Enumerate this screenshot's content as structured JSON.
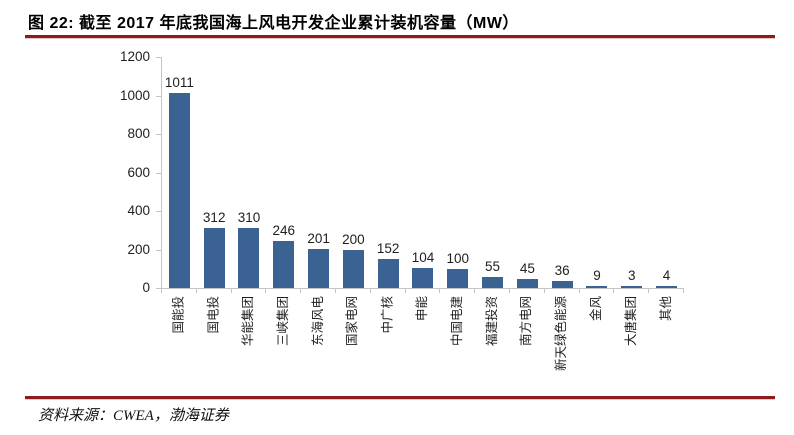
{
  "figure": {
    "title": "图 22: 截至 2017 年底我国海上风电开发企业累计装机容量（MW）",
    "source": "资料来源：CWEA，渤海证券"
  },
  "colors": {
    "bar": "#3A6394",
    "accent_rule": "#8B1D1D",
    "axis": "#C4C4C4",
    "text": "#1F1F1F"
  },
  "chart_data": {
    "type": "bar",
    "title": "截至2017年底我国海上风电开发企业累计装机容量（MW）",
    "categories": [
      "国能投",
      "国电投",
      "华能集团",
      "三峡集团",
      "东海风电",
      "国家电网",
      "中广核",
      "申能",
      "中国电建",
      "福建投资",
      "南方电网",
      "新天绿色能源",
      "金风",
      "大唐集团",
      "其他"
    ],
    "values": [
      1011,
      312,
      310,
      246,
      201,
      200,
      152,
      104,
      100,
      55,
      45,
      36,
      9,
      3,
      4
    ],
    "value_labels": true,
    "xlabel": "",
    "ylabel": "",
    "ylim": [
      0,
      1200
    ],
    "yticks": [
      0,
      200,
      400,
      600,
      800,
      1000,
      1200
    ],
    "grid": false,
    "legend": false,
    "bar_color": "#3A6394",
    "x_label_rotation": -90
  }
}
